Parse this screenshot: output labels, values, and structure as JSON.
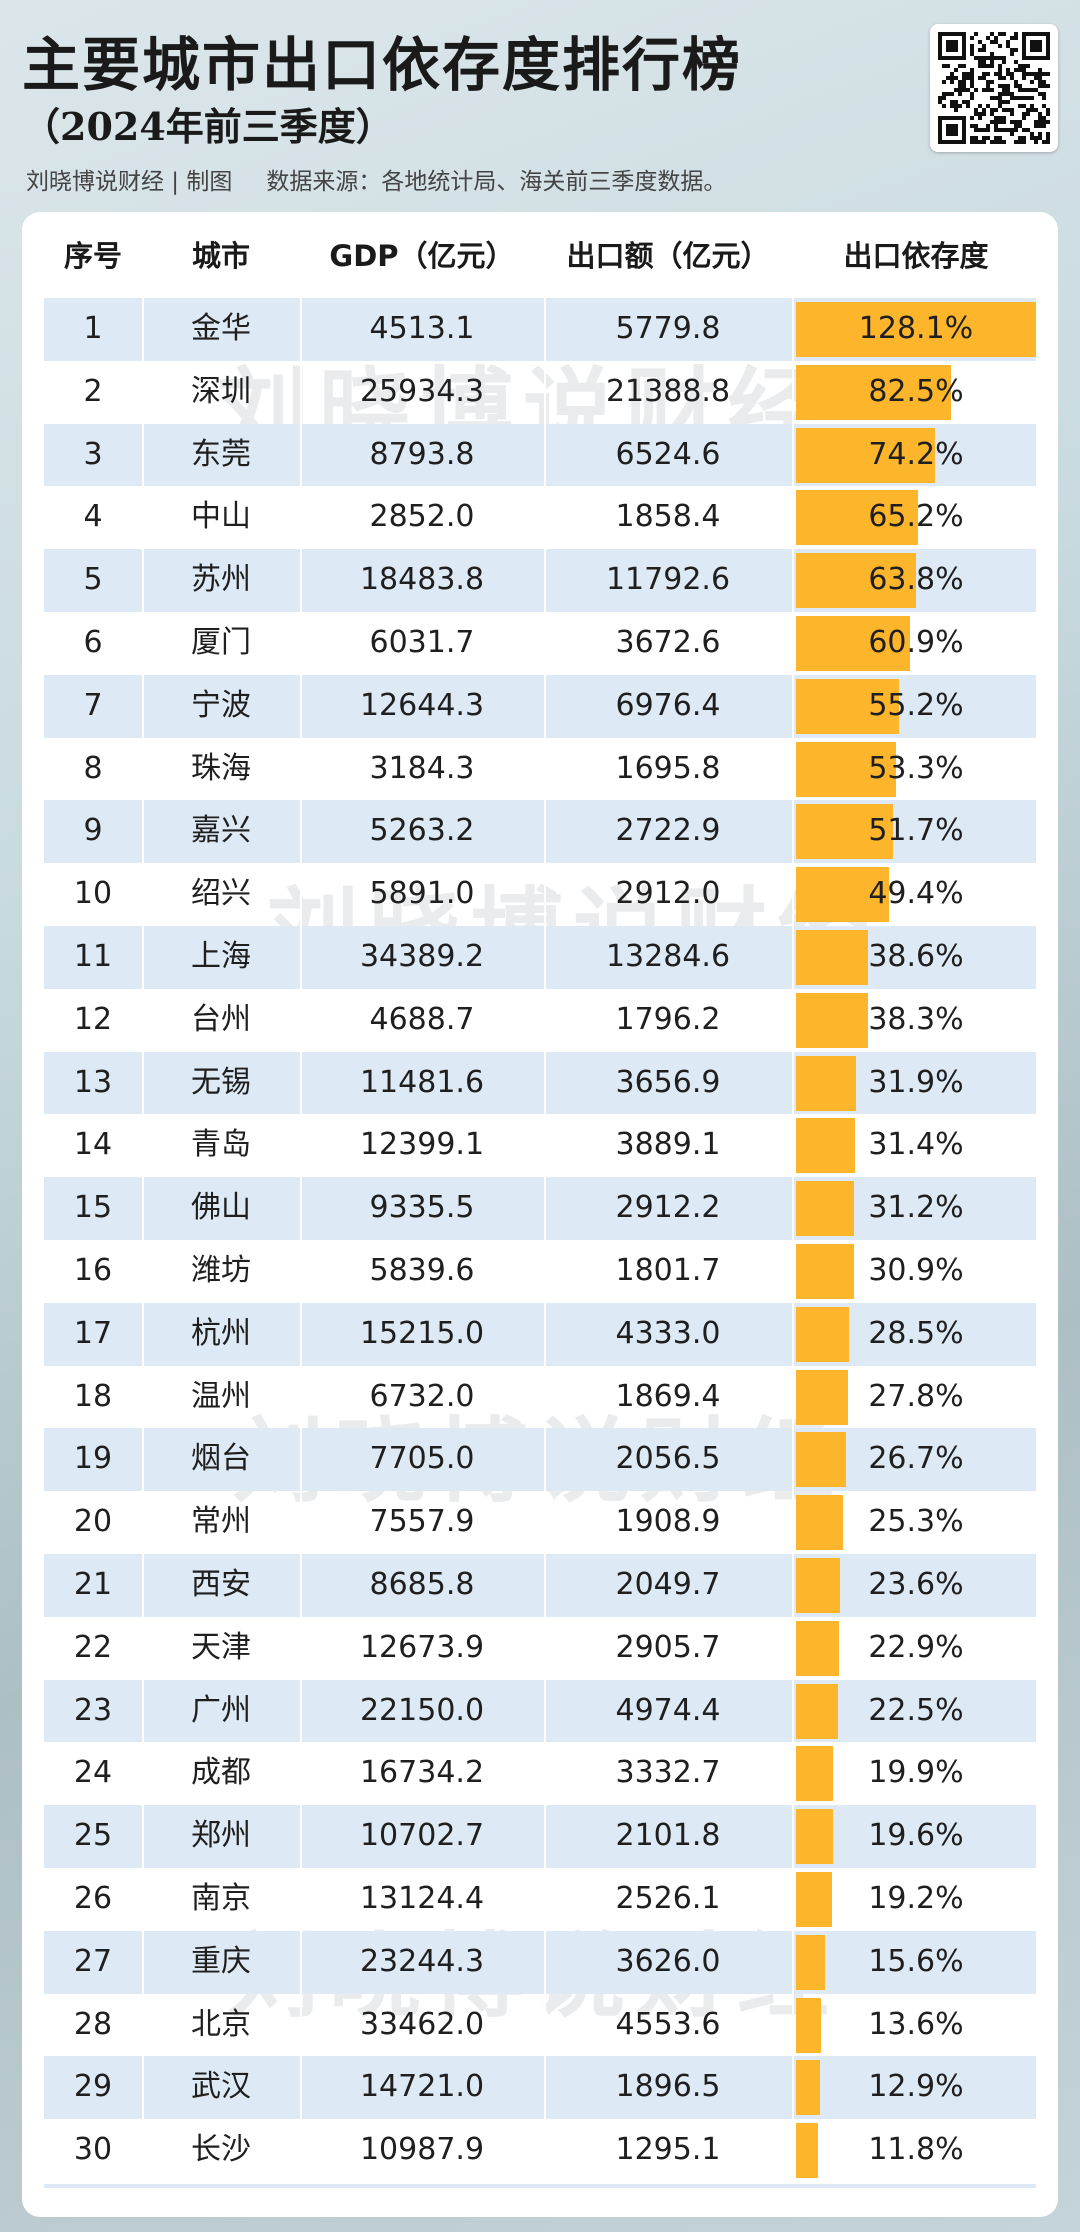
{
  "header": {
    "title": "主要城市出口依存度排行榜",
    "subtitle": "（2024年前三季度）",
    "credit": "刘晓博说财经 | 制图",
    "source": "数据来源：各地统计局、海关前三季度数据。"
  },
  "qr_icon": "qr-code-icon",
  "watermark": "刘晓博说财经",
  "colors": {
    "bar": "#fdb52b",
    "row_stripe": "#dde9f4",
    "card": "#ffffff"
  },
  "chart_data": {
    "type": "table",
    "columns": [
      "序号",
      "城市",
      "GDP（亿元）",
      "出口额（亿元）",
      "出口依存度"
    ],
    "bar_column": "出口依存度",
    "rows": [
      {
        "rank": "1",
        "city": "金华",
        "gdp": "4513.1",
        "export": "5779.8",
        "ratio": "128.1%",
        "value": 128.1
      },
      {
        "rank": "2",
        "city": "深圳",
        "gdp": "25934.3",
        "export": "21388.8",
        "ratio": "82.5%",
        "value": 82.5
      },
      {
        "rank": "3",
        "city": "东莞",
        "gdp": "8793.8",
        "export": "6524.6",
        "ratio": "74.2%",
        "value": 74.2
      },
      {
        "rank": "4",
        "city": "中山",
        "gdp": "2852.0",
        "export": "1858.4",
        "ratio": "65.2%",
        "value": 65.2
      },
      {
        "rank": "5",
        "city": "苏州",
        "gdp": "18483.8",
        "export": "11792.6",
        "ratio": "63.8%",
        "value": 63.8
      },
      {
        "rank": "6",
        "city": "厦门",
        "gdp": "6031.7",
        "export": "3672.6",
        "ratio": "60.9%",
        "value": 60.9
      },
      {
        "rank": "7",
        "city": "宁波",
        "gdp": "12644.3",
        "export": "6976.4",
        "ratio": "55.2%",
        "value": 55.2
      },
      {
        "rank": "8",
        "city": "珠海",
        "gdp": "3184.3",
        "export": "1695.8",
        "ratio": "53.3%",
        "value": 53.3
      },
      {
        "rank": "9",
        "city": "嘉兴",
        "gdp": "5263.2",
        "export": "2722.9",
        "ratio": "51.7%",
        "value": 51.7
      },
      {
        "rank": "10",
        "city": "绍兴",
        "gdp": "5891.0",
        "export": "2912.0",
        "ratio": "49.4%",
        "value": 49.4
      },
      {
        "rank": "11",
        "city": "上海",
        "gdp": "34389.2",
        "export": "13284.6",
        "ratio": "38.6%",
        "value": 38.6
      },
      {
        "rank": "12",
        "city": "台州",
        "gdp": "4688.7",
        "export": "1796.2",
        "ratio": "38.3%",
        "value": 38.3
      },
      {
        "rank": "13",
        "city": "无锡",
        "gdp": "11481.6",
        "export": "3656.9",
        "ratio": "31.9%",
        "value": 31.9
      },
      {
        "rank": "14",
        "city": "青岛",
        "gdp": "12399.1",
        "export": "3889.1",
        "ratio": "31.4%",
        "value": 31.4
      },
      {
        "rank": "15",
        "city": "佛山",
        "gdp": "9335.5",
        "export": "2912.2",
        "ratio": "31.2%",
        "value": 31.2
      },
      {
        "rank": "16",
        "city": "潍坊",
        "gdp": "5839.6",
        "export": "1801.7",
        "ratio": "30.9%",
        "value": 30.9
      },
      {
        "rank": "17",
        "city": "杭州",
        "gdp": "15215.0",
        "export": "4333.0",
        "ratio": "28.5%",
        "value": 28.5
      },
      {
        "rank": "18",
        "city": "温州",
        "gdp": "6732.0",
        "export": "1869.4",
        "ratio": "27.8%",
        "value": 27.8
      },
      {
        "rank": "19",
        "city": "烟台",
        "gdp": "7705.0",
        "export": "2056.5",
        "ratio": "26.7%",
        "value": 26.7
      },
      {
        "rank": "20",
        "city": "常州",
        "gdp": "7557.9",
        "export": "1908.9",
        "ratio": "25.3%",
        "value": 25.3
      },
      {
        "rank": "21",
        "city": "西安",
        "gdp": "8685.8",
        "export": "2049.7",
        "ratio": "23.6%",
        "value": 23.6
      },
      {
        "rank": "22",
        "city": "天津",
        "gdp": "12673.9",
        "export": "2905.7",
        "ratio": "22.9%",
        "value": 22.9
      },
      {
        "rank": "23",
        "city": "广州",
        "gdp": "22150.0",
        "export": "4974.4",
        "ratio": "22.5%",
        "value": 22.5
      },
      {
        "rank": "24",
        "city": "成都",
        "gdp": "16734.2",
        "export": "3332.7",
        "ratio": "19.9%",
        "value": 19.9
      },
      {
        "rank": "25",
        "city": "郑州",
        "gdp": "10702.7",
        "export": "2101.8",
        "ratio": "19.6%",
        "value": 19.6
      },
      {
        "rank": "26",
        "city": "南京",
        "gdp": "13124.4",
        "export": "2526.1",
        "ratio": "19.2%",
        "value": 19.2
      },
      {
        "rank": "27",
        "city": "重庆",
        "gdp": "23244.3",
        "export": "3626.0",
        "ratio": "15.6%",
        "value": 15.6
      },
      {
        "rank": "28",
        "city": "北京",
        "gdp": "33462.0",
        "export": "4553.6",
        "ratio": "13.6%",
        "value": 13.6
      },
      {
        "rank": "29",
        "city": "武汉",
        "gdp": "14721.0",
        "export": "1896.5",
        "ratio": "12.9%",
        "value": 12.9
      },
      {
        "rank": "30",
        "city": "长沙",
        "gdp": "10987.9",
        "export": "1295.1",
        "ratio": "11.8%",
        "value": 11.8
      }
    ]
  }
}
